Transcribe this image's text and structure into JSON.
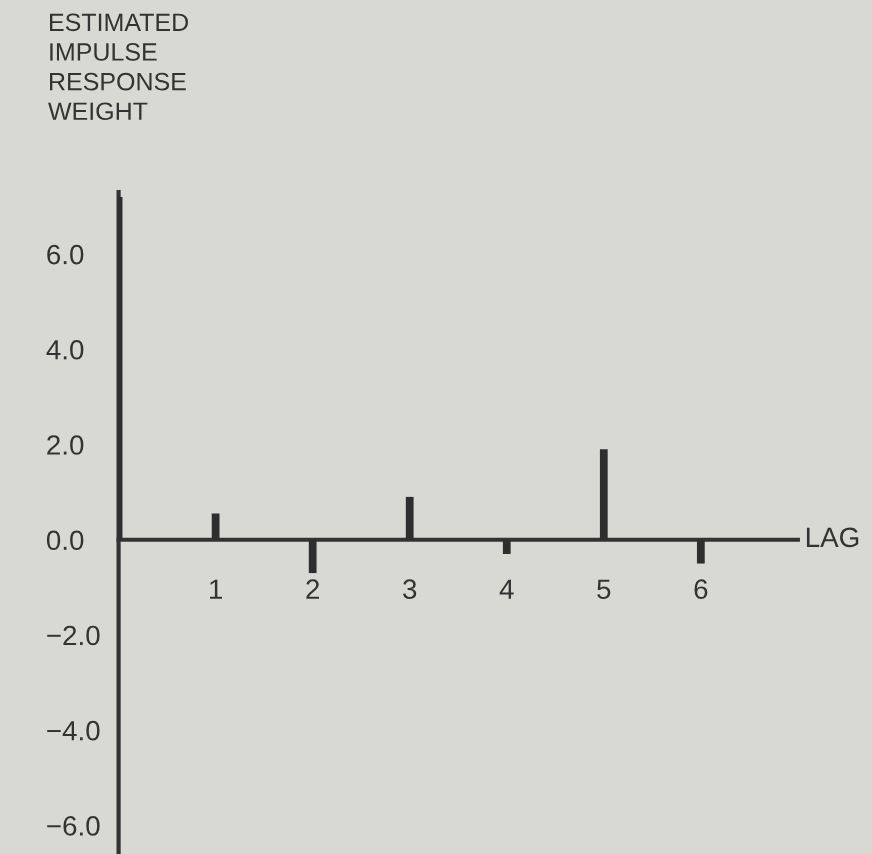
{
  "chart_data": {
    "type": "bar",
    "ylabel": "ESTIMATED\nIMPULSE\nRESPONSE\nWEIGHT",
    "xlabel": "LAG",
    "x": [
      0,
      1,
      2,
      3,
      4,
      5,
      6
    ],
    "values": [
      7.2,
      0.55,
      -0.7,
      0.9,
      -0.3,
      1.9,
      -0.5
    ],
    "color": "#2e2e2e",
    "xlim": [
      0,
      7
    ],
    "xticks": [
      1,
      2,
      3,
      4,
      5,
      6
    ],
    "ylim": [
      -6.6,
      7.3
    ],
    "yticks": [
      {
        "value": -6,
        "label": "−6.0"
      },
      {
        "value": -4,
        "label": "−4.0"
      },
      {
        "value": -2,
        "label": "−2.0"
      },
      {
        "value": 0,
        "label": "0.0"
      },
      {
        "value": 2,
        "label": "2.0"
      },
      {
        "value": 4,
        "label": "4.0"
      },
      {
        "value": 6,
        "label": "6.0"
      }
    ],
    "grid": false,
    "legend": false
  }
}
